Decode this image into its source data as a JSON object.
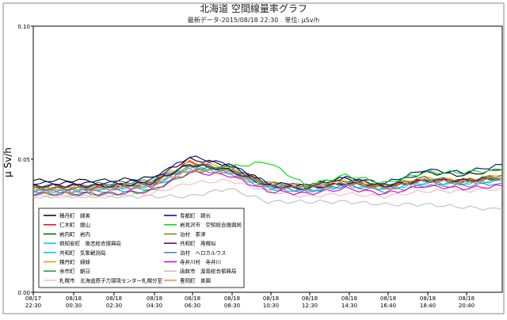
{
  "chart_data": {
    "type": "line",
    "title": "北海道 空間線量率グラフ",
    "subtitle": "最新データ-2015/08/18 22:30　単位: μSv/h",
    "ylabel": "μ Sv/h",
    "xlabel": "",
    "ylim": [
      0,
      0.1
    ],
    "yticks": [
      "0.00",
      "0.05",
      "0.10"
    ],
    "grid": false,
    "legend_position": "bottom-left",
    "x_ticks": [
      {
        "date": "08/17",
        "time": "22:30"
      },
      {
        "date": "08/18",
        "time": "00:30"
      },
      {
        "date": "08/18",
        "time": "02:30"
      },
      {
        "date": "08/18",
        "time": "04:30"
      },
      {
        "date": "08/18",
        "time": "06:30"
      },
      {
        "date": "08/18",
        "time": "08:30"
      },
      {
        "date": "08/18",
        "time": "10:30"
      },
      {
        "date": "08/18",
        "time": "12:30"
      },
      {
        "date": "08/18",
        "time": "14:30"
      },
      {
        "date": "08/18",
        "time": "16:40"
      },
      {
        "date": "08/18",
        "time": "18:40"
      },
      {
        "date": "08/18",
        "time": "20:40"
      }
    ],
    "x_times": [
      "08/17 22:30",
      "08/18 00:30",
      "08/18 02:30",
      "08/18 04:30",
      "08/18 06:30",
      "08/18 08:30",
      "08/18 10:30",
      "08/18 12:30",
      "08/18 14:30",
      "08/18 16:40",
      "08/18 18:40",
      "08/18 20:40",
      "08/18 22:30"
    ],
    "series": [
      {
        "name": "積丹町　婦美",
        "color": "#000000",
        "values": [
          0.042,
          0.042,
          0.042,
          0.043,
          0.05,
          0.048,
          0.041,
          0.04,
          0.043,
          0.04,
          0.045,
          0.044,
          0.046
        ]
      },
      {
        "name": "仁木町　銀山",
        "color": "#ff0000",
        "values": [
          0.039,
          0.039,
          0.039,
          0.04,
          0.049,
          0.046,
          0.04,
          0.039,
          0.041,
          0.039,
          0.042,
          0.041,
          0.043
        ]
      },
      {
        "name": "岩内町　岩内",
        "color": "#006400",
        "values": [
          0.04,
          0.04,
          0.04,
          0.041,
          0.048,
          0.046,
          0.04,
          0.039,
          0.041,
          0.04,
          0.042,
          0.042,
          0.043
        ]
      },
      {
        "name": "倶知安町　後志総合振興局",
        "color": "#00cccc",
        "values": [
          0.039,
          0.039,
          0.039,
          0.04,
          0.047,
          0.046,
          0.04,
          0.038,
          0.04,
          0.039,
          0.041,
          0.041,
          0.042
        ]
      },
      {
        "name": "共和町　気象観測局",
        "color": "#00bfff",
        "values": [
          0.038,
          0.038,
          0.039,
          0.04,
          0.047,
          0.045,
          0.039,
          0.038,
          0.04,
          0.039,
          0.041,
          0.041,
          0.042
        ]
      },
      {
        "name": "積丹町　婦妹",
        "color": "#ff8c00",
        "values": [
          0.039,
          0.04,
          0.04,
          0.041,
          0.049,
          0.047,
          0.041,
          0.04,
          0.042,
          0.04,
          0.043,
          0.042,
          0.044
        ]
      },
      {
        "name": "余市町　朝日",
        "color": "#2e8b57",
        "values": [
          0.04,
          0.04,
          0.041,
          0.042,
          0.048,
          0.047,
          0.041,
          0.04,
          0.042,
          0.04,
          0.043,
          0.042,
          0.044
        ]
      },
      {
        "name": "札幌市　北海道原子力環境センター札幌分室",
        "color": "#ffb6c1",
        "values": [
          0.036,
          0.036,
          0.036,
          0.037,
          0.041,
          0.042,
          0.038,
          0.036,
          0.037,
          0.036,
          0.038,
          0.038,
          0.039
        ]
      },
      {
        "name": "寿都町　錦谷",
        "color": "#000099",
        "values": [
          0.041,
          0.041,
          0.041,
          0.042,
          0.051,
          0.048,
          0.041,
          0.04,
          0.043,
          0.041,
          0.046,
          0.045,
          0.048
        ]
      },
      {
        "name": "岩見沢市　空知総合振興局",
        "color": "#00dd00",
        "values": [
          0.037,
          0.037,
          0.037,
          0.038,
          0.045,
          0.047,
          0.049,
          0.04,
          0.044,
          0.041,
          0.045,
          0.045,
          0.046
        ]
      },
      {
        "name": "泊村　茶津",
        "color": "#808000",
        "values": [
          0.039,
          0.039,
          0.04,
          0.041,
          0.047,
          0.046,
          0.04,
          0.039,
          0.041,
          0.04,
          0.042,
          0.042,
          0.043
        ]
      },
      {
        "name": "共和町　南幌似",
        "color": "#4b0082",
        "values": [
          0.04,
          0.04,
          0.04,
          0.041,
          0.048,
          0.046,
          0.04,
          0.039,
          0.041,
          0.04,
          0.042,
          0.042,
          0.043
        ]
      },
      {
        "name": "泊村　ヘロカルウス",
        "color": "#4682b4",
        "values": [
          0.038,
          0.038,
          0.038,
          0.039,
          0.046,
          0.045,
          0.039,
          0.038,
          0.04,
          0.038,
          0.04,
          0.04,
          0.041
        ]
      },
      {
        "name": "寺井川村　寺井川",
        "color": "#cc00cc",
        "values": [
          0.037,
          0.037,
          0.037,
          0.038,
          0.045,
          0.044,
          0.038,
          0.037,
          0.039,
          0.037,
          0.04,
          0.039,
          0.04
        ]
      },
      {
        "name": "函館市　渡島総合振興局",
        "color": "#c0c0c0",
        "values": [
          0.036,
          0.036,
          0.036,
          0.036,
          0.036,
          0.039,
          0.034,
          0.034,
          0.034,
          0.033,
          0.033,
          0.032,
          0.031
        ]
      },
      {
        "name": "豊岡町　美園",
        "color": "#ff7f50",
        "values": [
          0.038,
          0.038,
          0.039,
          0.04,
          0.046,
          0.045,
          0.04,
          0.039,
          0.041,
          0.039,
          0.042,
          0.041,
          0.043
        ]
      }
    ]
  }
}
